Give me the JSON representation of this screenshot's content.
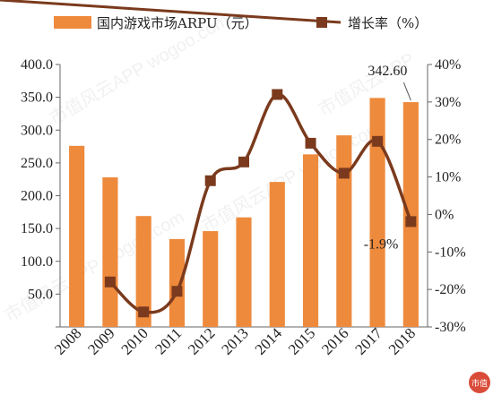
{
  "chart_data": {
    "type": "bar+line",
    "categories": [
      "2008",
      "2009",
      "2010",
      "2011",
      "2012",
      "2013",
      "2014",
      "2015",
      "2016",
      "2017",
      "2018"
    ],
    "series": [
      {
        "name": "国内游戏市场ARPU（元）",
        "type": "bar",
        "axis": "left",
        "color": "#ee8a3c",
        "values": [
          276,
          228,
          169,
          134,
          146,
          167,
          221,
          263,
          292,
          349,
          342.6
        ]
      },
      {
        "name": "增长率（%）",
        "type": "line",
        "axis": "right",
        "color": "#7b3a1d",
        "values": [
          null,
          -18,
          -26,
          -20.5,
          9,
          14,
          32,
          19,
          11,
          19.5,
          -1.9
        ]
      }
    ],
    "y_left": {
      "lim": [
        0,
        400
      ],
      "ticks": [
        "",
        "50.0",
        "100.0",
        "150.0",
        "200.0",
        "250.0",
        "300.0",
        "350.0",
        "400.0"
      ]
    },
    "y_right": {
      "lim": [
        -30,
        40
      ],
      "ticks": [
        "-30%",
        "-20%",
        "-10%",
        "0%",
        "10%",
        "20%",
        "30%",
        "40%"
      ]
    },
    "annotations": [
      {
        "text": "342.60",
        "category": "2018",
        "series": 0
      },
      {
        "text": "-1.9%",
        "category": "2018",
        "series": 1
      }
    ],
    "grid": false,
    "legend": "top"
  },
  "watermark": "市值风云APP wogoo.com"
}
